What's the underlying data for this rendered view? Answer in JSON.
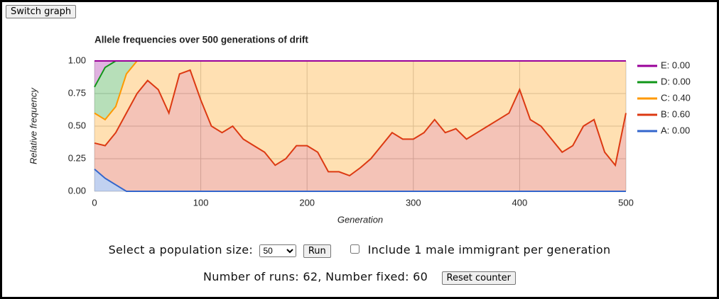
{
  "chart_data": {
    "type": "area",
    "title": "Allele frequencies over 500 generations of drift",
    "x_label": "Generation",
    "y_label": "Relative frequency",
    "x": [
      0,
      10,
      20,
      30,
      40,
      50,
      60,
      70,
      80,
      90,
      100,
      110,
      120,
      130,
      140,
      150,
      160,
      170,
      180,
      190,
      200,
      210,
      220,
      230,
      240,
      250,
      260,
      270,
      280,
      290,
      300,
      310,
      320,
      330,
      340,
      350,
      360,
      370,
      380,
      390,
      400,
      410,
      420,
      430,
      440,
      450,
      460,
      470,
      480,
      490,
      500
    ],
    "series": [
      {
        "name": "A: 0.00",
        "color": "#3366cc",
        "values": [
          0.17,
          0.1,
          0.05,
          0,
          0,
          0,
          0,
          0,
          0,
          0,
          0,
          0,
          0,
          0,
          0,
          0,
          0,
          0,
          0,
          0,
          0,
          0,
          0,
          0,
          0,
          0,
          0,
          0,
          0,
          0,
          0,
          0,
          0,
          0,
          0,
          0,
          0,
          0,
          0,
          0,
          0,
          0,
          0,
          0,
          0,
          0,
          0,
          0,
          0,
          0,
          0
        ]
      },
      {
        "name": "B: 0.60",
        "color": "#dc3912",
        "values": [
          0.2,
          0.25,
          0.4,
          0.6,
          0.75,
          0.85,
          0.78,
          0.6,
          0.9,
          0.93,
          0.7,
          0.5,
          0.45,
          0.5,
          0.4,
          0.35,
          0.3,
          0.2,
          0.25,
          0.35,
          0.35,
          0.3,
          0.15,
          0.15,
          0.12,
          0.18,
          0.25,
          0.35,
          0.45,
          0.4,
          0.4,
          0.45,
          0.55,
          0.45,
          0.48,
          0.4,
          0.45,
          0.5,
          0.55,
          0.6,
          0.78,
          0.55,
          0.5,
          0.4,
          0.3,
          0.35,
          0.5,
          0.55,
          0.3,
          0.2,
          0.6
        ]
      },
      {
        "name": "C: 0.40",
        "color": "#ff9900",
        "values": [
          0.23,
          0.2,
          0.2,
          0.3,
          0.25,
          0.15,
          0.22,
          0.4,
          0.1,
          0.07,
          0.3,
          0.5,
          0.55,
          0.5,
          0.6,
          0.65,
          0.7,
          0.8,
          0.75,
          0.65,
          0.65,
          0.7,
          0.85,
          0.85,
          0.88,
          0.82,
          0.75,
          0.65,
          0.55,
          0.6,
          0.6,
          0.55,
          0.45,
          0.55,
          0.52,
          0.6,
          0.55,
          0.5,
          0.45,
          0.4,
          0.22,
          0.45,
          0.5,
          0.6,
          0.7,
          0.65,
          0.5,
          0.45,
          0.7,
          0.8,
          0.4
        ]
      },
      {
        "name": "D: 0.00",
        "color": "#109618",
        "values": [
          0.2,
          0.4,
          0.35,
          0.1,
          0,
          0,
          0,
          0,
          0,
          0,
          0,
          0,
          0,
          0,
          0,
          0,
          0,
          0,
          0,
          0,
          0,
          0,
          0,
          0,
          0,
          0,
          0,
          0,
          0,
          0,
          0,
          0,
          0,
          0,
          0,
          0,
          0,
          0,
          0,
          0,
          0,
          0,
          0,
          0,
          0,
          0,
          0,
          0,
          0,
          0,
          0
        ]
      },
      {
        "name": "E: 0.00",
        "color": "#990099",
        "values": [
          0.2,
          0.05,
          0,
          0,
          0,
          0,
          0,
          0,
          0,
          0,
          0,
          0,
          0,
          0,
          0,
          0,
          0,
          0,
          0,
          0,
          0,
          0,
          0,
          0,
          0,
          0,
          0,
          0,
          0,
          0,
          0,
          0,
          0,
          0,
          0,
          0,
          0,
          0,
          0,
          0,
          0,
          0,
          0,
          0,
          0,
          0,
          0,
          0,
          0,
          0,
          0
        ]
      }
    ],
    "stacked": true,
    "xlim": [
      0,
      500
    ],
    "xticks": [
      0,
      100,
      200,
      300,
      400,
      500
    ],
    "ylim": [
      0,
      1
    ],
    "yticks": [
      {
        "value": 0,
        "label": "0.00"
      },
      {
        "value": 0.25,
        "label": "0.25"
      },
      {
        "value": 0.5,
        "label": "0.50"
      },
      {
        "value": 0.75,
        "label": "0.75"
      },
      {
        "value": 1,
        "label": "1.00"
      }
    ],
    "grid": true,
    "legend": "right"
  },
  "ui": {
    "switch_button": "Switch graph",
    "population_label": "Select a population size:",
    "population_value": "50",
    "run_button": "Run",
    "immigrant_label": "Include 1 male immigrant per generation",
    "counter": "Number of runs: 62, Number fixed: 60",
    "reset_button": "Reset counter"
  }
}
